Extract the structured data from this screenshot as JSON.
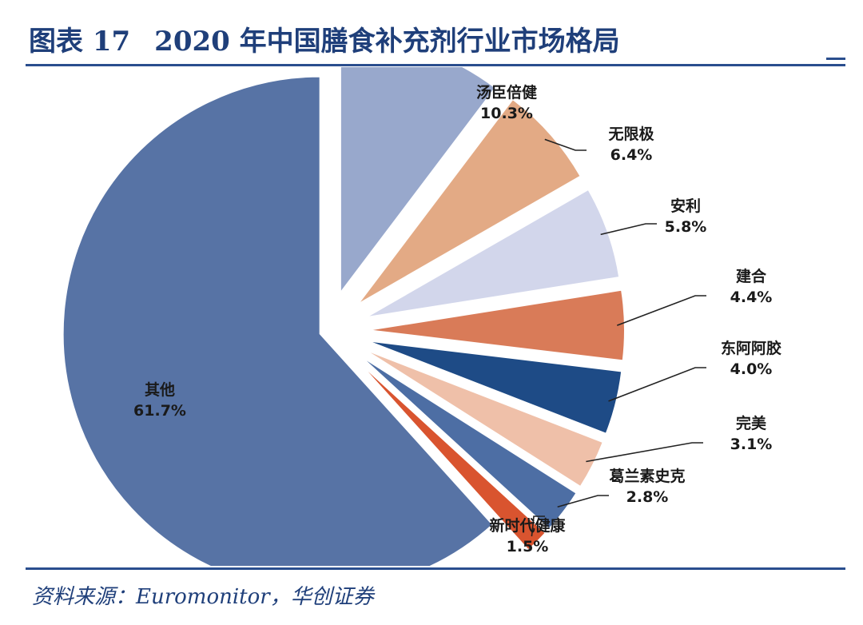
{
  "header": {
    "figure_label": "图表 17",
    "title": "2020 年中国膳食补充剂行业市场格局"
  },
  "footer": {
    "source": "资料来源：Euromonitor，华创证券"
  },
  "chart_data": {
    "type": "pie",
    "unit": "%",
    "slices": [
      {
        "name": "汤臣倍健",
        "value": 10.3,
        "label": "10.3%",
        "color": "#98a8cc"
      },
      {
        "name": "无限极",
        "value": 6.4,
        "label": "6.4%",
        "color": "#e3aa85"
      },
      {
        "name": "安利",
        "value": 5.8,
        "label": "5.8%",
        "color": "#d2d6eb"
      },
      {
        "name": "建合",
        "value": 4.4,
        "label": "4.4%",
        "color": "#d97b58"
      },
      {
        "name": "东阿阿胶",
        "value": 4.0,
        "label": "4.0%",
        "color": "#1e4b86"
      },
      {
        "name": "完美",
        "value": 3.1,
        "label": "3.1%",
        "color": "#efc0a9"
      },
      {
        "name": "葛兰素史克",
        "value": 2.8,
        "label": "2.8%",
        "color": "#4d6ea4"
      },
      {
        "name": "新时代健康",
        "value": 1.5,
        "label": "1.5%",
        "color": "#d9542f"
      },
      {
        "name": "其他",
        "value": 61.7,
        "label": "61.7%",
        "color": "#5773a5"
      }
    ]
  }
}
